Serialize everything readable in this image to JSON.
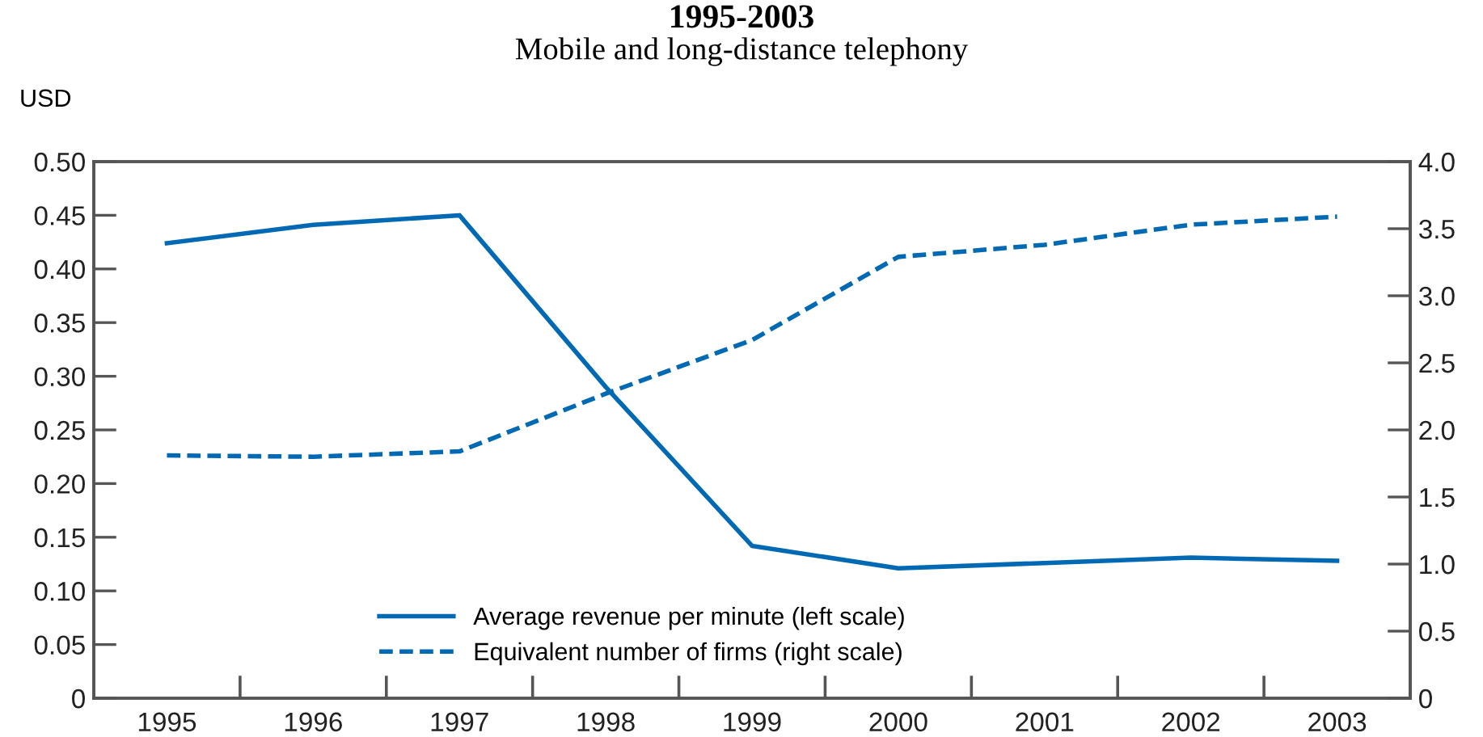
{
  "chart_data": {
    "type": "line",
    "title": "1995-2003",
    "subtitle": "Mobile and long-distance telephony",
    "ylabel": "USD",
    "categories": [
      "1995",
      "1996",
      "1997",
      "1998",
      "1999",
      "2000",
      "2001",
      "2002",
      "2003"
    ],
    "series": [
      {
        "name": "Average revenue per minute (left scale)",
        "color": "#0069b4",
        "line_style": "solid",
        "values": [
          0.424,
          0.441,
          0.45,
          0.29,
          0.142,
          0.121,
          0.126,
          0.131,
          0.128
        ]
      },
      {
        "name": "Equivalent number of firms (right scale)",
        "color": "#0069b4",
        "line_style": "dashed",
        "axis": "y2",
        "values": [
          1.81,
          1.8,
          1.84,
          2.27,
          2.67,
          3.29,
          3.38,
          3.53,
          3.59
        ]
      }
    ],
    "ylim": [
      0,
      0.5
    ],
    "yticks": [
      {
        "value": 0,
        "label": "0"
      },
      {
        "value": 0.05,
        "label": "0.05"
      },
      {
        "value": 0.1,
        "label": "0.10"
      },
      {
        "value": 0.15,
        "label": "0.15"
      },
      {
        "value": 0.2,
        "label": "0.20"
      },
      {
        "value": 0.25,
        "label": "0.25"
      },
      {
        "value": 0.3,
        "label": "0.30"
      },
      {
        "value": 0.35,
        "label": "0.35"
      },
      {
        "value": 0.4,
        "label": "0.40"
      },
      {
        "value": 0.45,
        "label": "0.45"
      },
      {
        "value": 0.5,
        "label": "0.50"
      }
    ],
    "y2lim": [
      0,
      4
    ],
    "y2ticks": [
      {
        "value": 0,
        "label": "0"
      },
      {
        "value": 0.5,
        "label": "0.5"
      },
      {
        "value": 1,
        "label": "1.0"
      },
      {
        "value": 1.5,
        "label": "1.5"
      },
      {
        "value": 2,
        "label": "2.0"
      },
      {
        "value": 2.5,
        "label": "2.5"
      },
      {
        "value": 3,
        "label": "3.0"
      },
      {
        "value": 3.5,
        "label": "3.5"
      },
      {
        "value": 4,
        "label": "4.0"
      }
    ],
    "legend": "bottom",
    "grid": false
  }
}
